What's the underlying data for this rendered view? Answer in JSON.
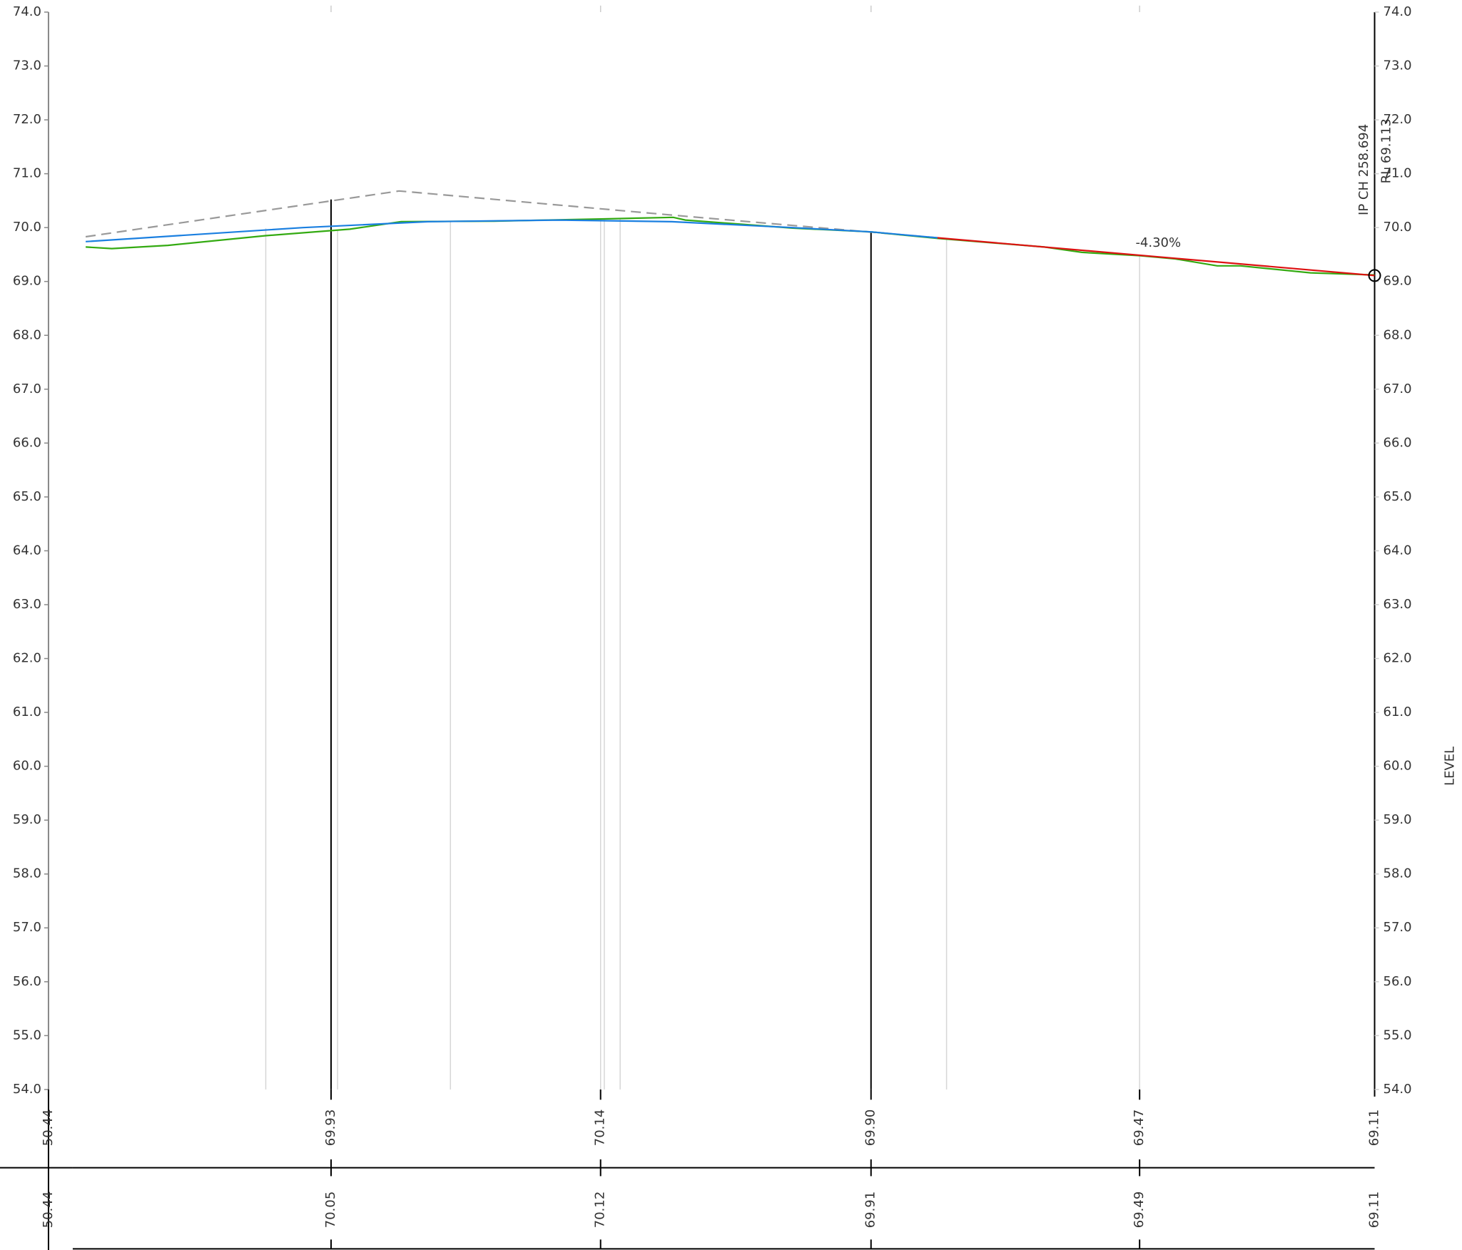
{
  "chart_data": {
    "type": "line",
    "xlim": [
      209.5,
      258.7
    ],
    "ylim": [
      54,
      74
    ],
    "yticks": [
      {
        "value": 54,
        "label": "54.0"
      },
      {
        "value": 55,
        "label": "55.0"
      },
      {
        "value": 56,
        "label": "56.0"
      },
      {
        "value": 57,
        "label": "57.0"
      },
      {
        "value": 58,
        "label": "58.0"
      },
      {
        "value": 59,
        "label": "59.0"
      },
      {
        "value": 60,
        "label": "60.0"
      },
      {
        "value": 61,
        "label": "61.0"
      },
      {
        "value": 62,
        "label": "62.0"
      },
      {
        "value": 63,
        "label": "63.0"
      },
      {
        "value": 64,
        "label": "64.0"
      },
      {
        "value": 65,
        "label": "65.0"
      },
      {
        "value": 66,
        "label": "66.0"
      },
      {
        "value": 67,
        "label": "67.0"
      },
      {
        "value": 68,
        "label": "68.0"
      },
      {
        "value": 69,
        "label": "69.0"
      },
      {
        "value": 70,
        "label": "70.0"
      },
      {
        "value": 71,
        "label": "71.0"
      },
      {
        "value": 72,
        "label": "72.0"
      },
      {
        "value": 73,
        "label": "73.0"
      },
      {
        "value": 74,
        "label": "74.0"
      }
    ],
    "right_axis_label": "LEVEL",
    "series": [
      {
        "color": "#999999",
        "dashed": true,
        "x": [
          210.88,
          222.51,
          232.68,
          242.48
        ],
        "values": [
          69.83,
          70.68,
          70.23,
          69.81
        ]
      },
      {
        "color": "#33aa11",
        "dashed": false,
        "x": [
          210.88,
          211.85,
          213.93,
          217.56,
          220.68,
          222.58,
          226.04,
          229.98,
          232.68,
          233.13,
          237.11,
          240.02,
          242.48,
          246.45,
          247.84,
          249.98,
          251.3,
          252.86,
          253.72,
          256.32,
          258.7
        ],
        "values": [
          69.64,
          69.61,
          69.67,
          69.85,
          69.97,
          70.11,
          70.12,
          70.16,
          70.19,
          70.14,
          69.99,
          69.92,
          69.8,
          69.64,
          69.54,
          69.48,
          69.42,
          69.29,
          69.29,
          69.16,
          69.12
        ]
      },
      {
        "color": "#1a7fe0",
        "dashed": false,
        "x": [
          210.88,
          218.94,
          223.58,
          228.46,
          232.62,
          237.11,
          240.02,
          242.48
        ],
        "values": [
          69.74,
          70.0,
          70.11,
          70.14,
          70.11,
          70.0,
          69.92,
          69.81
        ]
      },
      {
        "color": "#dd1111",
        "dashed": false,
        "x": [
          242.48,
          258.7
        ],
        "values": [
          69.81,
          69.11
        ]
      }
    ],
    "annotations": {
      "grade": "-4.30%",
      "ip_chainage": "IP CH 258.694",
      "ip_level": "RL 69.113"
    },
    "bands": [
      {
        "values": [
          "50.44",
          "69.93",
          "70.14",
          "69.90",
          "69.47",
          "69.11"
        ]
      },
      {
        "values": [
          "50.44",
          "70.05",
          "70.12",
          "69.91",
          "69.49",
          "69.11"
        ]
      }
    ]
  }
}
